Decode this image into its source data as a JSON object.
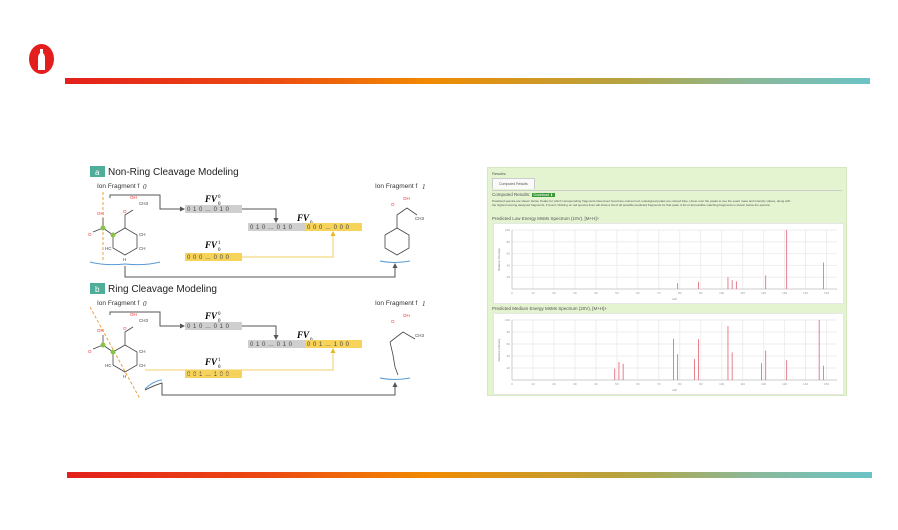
{
  "diagram": {
    "a": {
      "badge": "a",
      "title": "Non-Ring Cleavage Modeling",
      "f0": "Ion Fragment f",
      "f1": "Ion Fragment f",
      "fv00": "FV",
      "fv01": "FV",
      "fv0": "FV",
      "bits00": "0 1 0  …  0 1 0",
      "bits01": "0 0 0  …  0 0 0",
      "bits0_gray": "0 1 0  …  0 1 0",
      "bits0_yellow": "0 0 0  …  0 0 0"
    },
    "b": {
      "badge": "b",
      "title": "Ring Cleavage Modeling",
      "f0": "Ion Fragment f",
      "f1": "Ion Fragment f",
      "fv00": "FV",
      "fv01": "FV",
      "fv0": "FV",
      "bits00": "0 1 0  …  0 1 0",
      "bits01": "0 0 1  …  1 0 0",
      "bits0_gray": "0 1 0  …  0 1 0",
      "bits0_yellow": "0 0 1  …  1 0 0"
    },
    "atoms": {
      "oh": "OH",
      "ch": "CH",
      "hc": "HC",
      "h": "H",
      "c": "C",
      "o": "O",
      "ch3": "CH3"
    }
  },
  "results": {
    "heading": "Results:",
    "tab": "Computed Results",
    "computed_label": "Computed Results:",
    "download": "Download ⬇",
    "description": "Predicted spectra are shown below. Peaks for which corresponding fragments have been found are colored red; unassigned peaks are colored blue. Hover over the peaks to see the exact mass and intensity values, along with the highest scoring assigned fragments, if found. Clicking on red spectra lines will show a list of all possible predicted fragments for that peak. A list of all possible matching fragments is shown below the spectra."
  },
  "colors": {
    "assigned": "#e06070",
    "unassigned": "#6a8fd0",
    "panel": "#e4f3d0",
    "badge": "#4fae9a",
    "yellow": "#f7d35a"
  },
  "chart_data": [
    {
      "type": "bar",
      "title": "Predicted Low Energy MsMs Spectrum (10V), [M+H]+",
      "xlabel": "m/z",
      "ylabel": "Relative Intensity",
      "xlim": [
        0,
        155
      ],
      "ylim": [
        0,
        100
      ],
      "xticks": [
        0,
        10,
        20,
        30,
        40,
        50,
        60,
        70,
        80,
        90,
        100,
        110,
        120,
        130,
        140,
        150
      ],
      "yticks": [
        20,
        40,
        60,
        80,
        100
      ],
      "grid": true,
      "peaks": [
        {
          "x": 79,
          "y": 10,
          "assigned": true
        },
        {
          "x": 89,
          "y": 12,
          "assigned": true
        },
        {
          "x": 103,
          "y": 20,
          "assigned": true
        },
        {
          "x": 105,
          "y": 15,
          "assigned": true
        },
        {
          "x": 107,
          "y": 13,
          "assigned": true
        },
        {
          "x": 121,
          "y": 23,
          "assigned": true
        },
        {
          "x": 131,
          "y": 100,
          "assigned": true
        },
        {
          "x": 148.5,
          "y": 45,
          "assigned": false
        }
      ]
    },
    {
      "type": "bar",
      "title": "Predicted Medium Energy MsMs Spectrum (20V), [M+H]+",
      "xlabel": "m/z",
      "ylabel": "Relative Intensity",
      "xlim": [
        0,
        155
      ],
      "ylim": [
        0,
        100
      ],
      "xticks": [
        0,
        10,
        20,
        30,
        40,
        50,
        60,
        70,
        80,
        90,
        100,
        110,
        120,
        130,
        140,
        150
      ],
      "yticks": [
        20,
        40,
        60,
        80,
        100
      ],
      "grid": true,
      "peaks": [
        {
          "x": 49,
          "y": 19,
          "assigned": true
        },
        {
          "x": 51,
          "y": 30,
          "assigned": true
        },
        {
          "x": 53,
          "y": 27,
          "assigned": true
        },
        {
          "x": 77,
          "y": 69,
          "assigned": true
        },
        {
          "x": 79,
          "y": 43,
          "assigned": true
        },
        {
          "x": 87,
          "y": 35,
          "assigned": true
        },
        {
          "x": 89,
          "y": 68,
          "assigned": true
        },
        {
          "x": 103,
          "y": 90,
          "assigned": true
        },
        {
          "x": 105,
          "y": 46,
          "assigned": true
        },
        {
          "x": 119,
          "y": 28,
          "assigned": true
        },
        {
          "x": 121,
          "y": 49,
          "assigned": true
        },
        {
          "x": 131,
          "y": 33,
          "assigned": true
        },
        {
          "x": 146.5,
          "y": 100,
          "assigned": true
        },
        {
          "x": 148.5,
          "y": 24,
          "assigned": false
        }
      ]
    }
  ]
}
